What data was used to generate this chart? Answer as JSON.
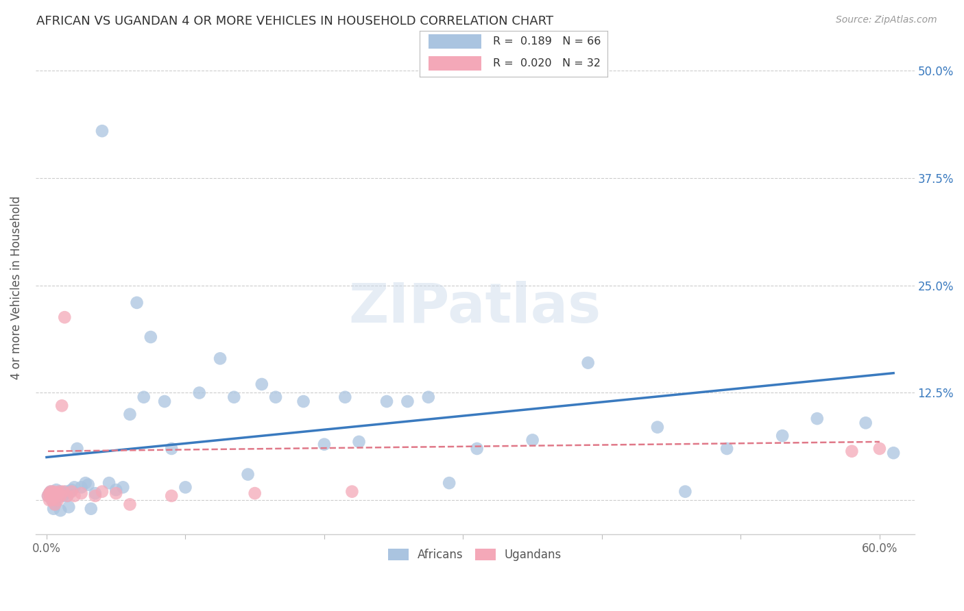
{
  "title": "AFRICAN VS UGANDAN 4 OR MORE VEHICLES IN HOUSEHOLD CORRELATION CHART",
  "source": "Source: ZipAtlas.com",
  "ylabel": "4 or more Vehicles in Household",
  "xlim": [
    -0.008,
    0.625
  ],
  "ylim": [
    -0.04,
    0.535
  ],
  "xticks": [
    0.0,
    0.1,
    0.2,
    0.3,
    0.4,
    0.5,
    0.6
  ],
  "xtick_labels": [
    "0.0%",
    "",
    "",
    "",
    "",
    "",
    "60.0%"
  ],
  "ytick_positions": [
    0.0,
    0.125,
    0.25,
    0.375,
    0.5
  ],
  "grid_color": "#cccccc",
  "background_color": "#ffffff",
  "watermark": "ZIPatlas",
  "african_color": "#aac4e0",
  "ugandan_color": "#f4a8b8",
  "african_line_color": "#3a7abf",
  "ugandan_line_color": "#e07888",
  "legend_R_african": "0.189",
  "legend_N_african": "66",
  "legend_R_ugandan": "0.020",
  "legend_N_ugandan": "32",
  "african_x": [
    0.001,
    0.002,
    0.003,
    0.003,
    0.004,
    0.004,
    0.005,
    0.005,
    0.006,
    0.006,
    0.007,
    0.007,
    0.008,
    0.009,
    0.01,
    0.01,
    0.011,
    0.012,
    0.013,
    0.014,
    0.015,
    0.016,
    0.017,
    0.018,
    0.02,
    0.022,
    0.025,
    0.028,
    0.03,
    0.032,
    0.035,
    0.04,
    0.045,
    0.05,
    0.055,
    0.06,
    0.065,
    0.07,
    0.075,
    0.085,
    0.09,
    0.1,
    0.11,
    0.125,
    0.135,
    0.145,
    0.155,
    0.165,
    0.185,
    0.2,
    0.215,
    0.225,
    0.245,
    0.26,
    0.275,
    0.29,
    0.31,
    0.35,
    0.39,
    0.44,
    0.46,
    0.49,
    0.53,
    0.555,
    0.59,
    0.61
  ],
  "african_y": [
    0.005,
    0.008,
    0.006,
    0.01,
    0.003,
    0.0,
    0.008,
    -0.01,
    0.005,
    -0.005,
    0.012,
    0.0,
    0.008,
    0.005,
    0.01,
    -0.012,
    0.006,
    0.005,
    0.008,
    0.01,
    0.005,
    -0.008,
    0.01,
    0.012,
    0.015,
    0.06,
    0.015,
    0.02,
    0.018,
    -0.01,
    0.008,
    0.43,
    0.02,
    0.012,
    0.015,
    0.1,
    0.23,
    0.12,
    0.19,
    0.115,
    0.06,
    0.015,
    0.125,
    0.165,
    0.12,
    0.03,
    0.135,
    0.12,
    0.115,
    0.065,
    0.12,
    0.068,
    0.115,
    0.115,
    0.12,
    0.02,
    0.06,
    0.07,
    0.16,
    0.085,
    0.01,
    0.06,
    0.075,
    0.095,
    0.09,
    0.055
  ],
  "ugandan_x": [
    0.001,
    0.002,
    0.002,
    0.003,
    0.003,
    0.004,
    0.004,
    0.005,
    0.005,
    0.006,
    0.006,
    0.007,
    0.008,
    0.008,
    0.009,
    0.01,
    0.011,
    0.012,
    0.013,
    0.015,
    0.018,
    0.02,
    0.025,
    0.035,
    0.04,
    0.05,
    0.06,
    0.09,
    0.15,
    0.22,
    0.58,
    0.6
  ],
  "ugandan_y": [
    0.005,
    0.008,
    0.0,
    0.01,
    0.005,
    0.008,
    0.0,
    0.01,
    0.005,
    0.008,
    -0.005,
    0.005,
    0.008,
    0.0,
    0.01,
    0.005,
    0.11,
    0.01,
    0.213,
    0.005,
    0.01,
    0.005,
    0.008,
    0.005,
    0.01,
    0.008,
    -0.005,
    0.005,
    0.008,
    0.01,
    0.057,
    0.06
  ],
  "blue_trend_x0": 0.0,
  "blue_trend_y0": 0.05,
  "blue_trend_x1": 0.61,
  "blue_trend_y1": 0.148,
  "pink_trend_x0": 0.001,
  "pink_trend_y0": 0.057,
  "pink_trend_x1": 0.6,
  "pink_trend_y1": 0.068
}
